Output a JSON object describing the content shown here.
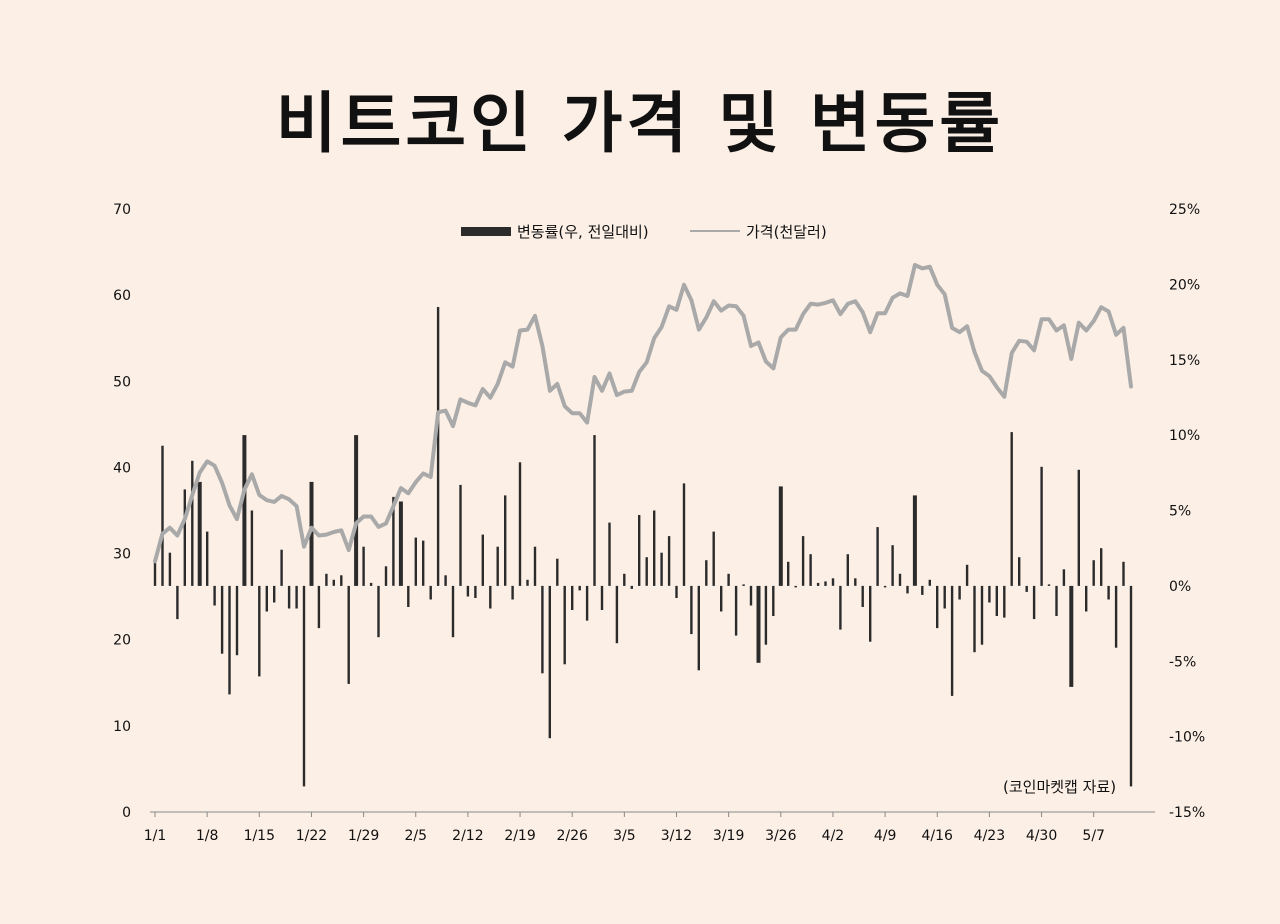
{
  "title": "비트코인 가격 및 변동률",
  "source": "(코인마켓캡  자료)",
  "chart_data": {
    "type": "bar+line",
    "title": "비트코인 가격 및 변동률",
    "legend": [
      {
        "name": "변동률(우, 전일대비)",
        "color": "#2b2b2b",
        "kind": "bar"
      },
      {
        "name": "가격(천달러)",
        "color": "#a9a9a9",
        "kind": "line"
      }
    ],
    "legend_position": "top-center",
    "x_ticks": [
      "1/1",
      "1/8",
      "1/15",
      "1/22",
      "1/29",
      "2/5",
      "2/12",
      "2/19",
      "2/26",
      "3/5",
      "3/12",
      "3/19",
      "3/26",
      "4/2",
      "4/9",
      "4/16",
      "4/23",
      "4/30",
      "5/7"
    ],
    "y_left": {
      "label": "가격(천달러)",
      "min": 0,
      "max": 70,
      "ticks": [
        "0",
        "10",
        "20",
        "30",
        "40",
        "50",
        "60",
        "70"
      ]
    },
    "y_right": {
      "label": "변동률",
      "min": -15,
      "max": 25,
      "ticks": [
        "-15%",
        "-10%",
        "-5%",
        "0%",
        "5%",
        "10%",
        "15%",
        "20%",
        "25%"
      ]
    },
    "grid": false,
    "start_date": "1/1",
    "price": [
      29.1,
      32.3,
      33.0,
      32.1,
      34.0,
      36.8,
      39.4,
      40.7,
      40.2,
      38.2,
      35.6,
      34.0,
      37.4,
      39.2,
      36.8,
      36.2,
      36.0,
      36.7,
      36.3,
      35.5,
      30.8,
      33.0,
      32.1,
      32.2,
      32.5,
      32.7,
      30.4,
      33.5,
      34.3,
      34.3,
      33.1,
      33.5,
      35.5,
      37.6,
      37.0,
      38.3,
      39.3,
      38.9,
      46.4,
      46.6,
      44.8,
      47.9,
      47.5,
      47.2,
      49.1,
      48.1,
      49.7,
      52.2,
      51.7,
      55.9,
      56.0,
      57.6,
      54.1,
      48.9,
      49.7,
      47.1,
      46.3,
      46.3,
      45.2,
      50.5,
      48.9,
      50.9,
      48.4,
      48.8,
      48.9,
      51.1,
      52.2,
      55.0,
      56.3,
      58.7,
      58.3,
      61.2,
      59.4,
      56.0,
      57.4,
      59.3,
      58.2,
      58.8,
      58.7,
      57.6,
      54.1,
      54.5,
      52.3,
      51.5,
      55.1,
      56.0,
      56.0,
      57.8,
      59.0,
      58.9,
      59.1,
      59.4,
      57.8,
      59.0,
      59.3,
      58.0,
      55.7,
      57.9,
      57.9,
      59.7,
      60.2,
      59.9,
      63.5,
      63.1,
      63.3,
      61.2,
      60.1,
      56.2,
      55.7,
      56.4,
      53.4,
      51.2,
      50.6,
      49.3,
      48.2,
      53.3,
      54.7,
      54.6,
      53.6,
      57.2,
      57.2,
      55.9,
      56.5,
      52.6,
      56.8,
      55.9,
      57.0,
      58.6,
      58.1,
      55.4,
      56.2,
      49.4
    ],
    "change_pct": [
      1.6,
      9.3,
      2.2,
      -2.2,
      6.4,
      8.3,
      6.9,
      3.6,
      -1.3,
      -4.5,
      -7.2,
      -4.6,
      10.0,
      5.0,
      -6.0,
      -1.7,
      -1.1,
      2.4,
      -1.5,
      -1.5,
      -13.3,
      6.9,
      -2.8,
      0.8,
      0.4,
      0.7,
      -6.5,
      10.0,
      2.6,
      0.2,
      -3.4,
      1.3,
      5.9,
      5.6,
      -1.4,
      3.2,
      3.0,
      -0.9,
      18.5,
      0.7,
      -3.4,
      6.7,
      -0.7,
      -0.8,
      3.4,
      -1.5,
      2.6,
      6.0,
      -0.9,
      8.2,
      0.4,
      2.6,
      -5.8,
      -10.1,
      1.8,
      -5.2,
      -1.6,
      -0.3,
      -2.3,
      10.0,
      -1.6,
      4.2,
      -3.8,
      0.8,
      -0.2,
      4.7,
      1.9,
      5.0,
      2.2,
      3.3,
      -0.8,
      6.8,
      -3.2,
      -5.6,
      1.7,
      3.6,
      -1.7,
      0.8,
      -3.3,
      0.1,
      -1.3,
      -5.1,
      -3.9,
      -2.0,
      6.6,
      1.6,
      -0.1,
      3.3,
      2.1,
      0.2,
      0.3,
      0.5,
      -2.9,
      2.1,
      0.5,
      -1.4,
      -3.7,
      3.9,
      -0.1,
      2.7,
      0.8,
      -0.5,
      6.0,
      -0.6,
      0.4,
      -2.8,
      -1.5,
      -7.3,
      -0.9,
      1.4,
      -4.4,
      -3.9,
      -1.1,
      -2.0,
      -2.1,
      10.2,
      1.9,
      -0.4,
      -2.2,
      7.9,
      0.1,
      -2.0,
      1.1,
      -6.7,
      7.7,
      -1.7,
      1.7,
      2.5,
      -0.9,
      -4.1,
      1.6,
      -13.3
    ]
  }
}
